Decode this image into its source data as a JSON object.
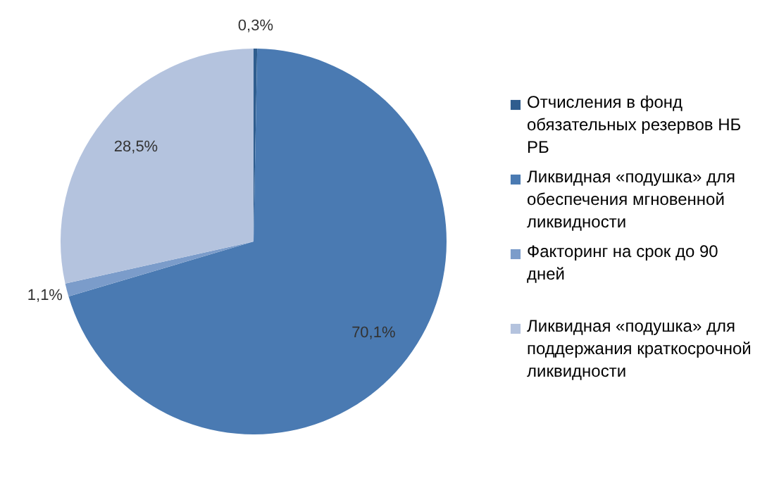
{
  "chart_data": {
    "type": "pie",
    "categories": [
      "Отчисления в фонд обязательных резервов НБ РБ",
      "Ликвидная «подушка» для обеспечения мгновенной ликвидности",
      "Факторинг на срок до 90 дней",
      "Ликвидная «подушка»  для поддержания краткосрочной ликвидности"
    ],
    "values": [
      0.3,
      70.1,
      1.1,
      28.5
    ],
    "colors": [
      "#2f5d8e",
      "#4a7ab2",
      "#7b9cca",
      "#b4c3de"
    ],
    "value_labels": [
      "0,3%",
      "70,1%",
      "1,1%",
      "28,5%"
    ],
    "legend": "right"
  }
}
